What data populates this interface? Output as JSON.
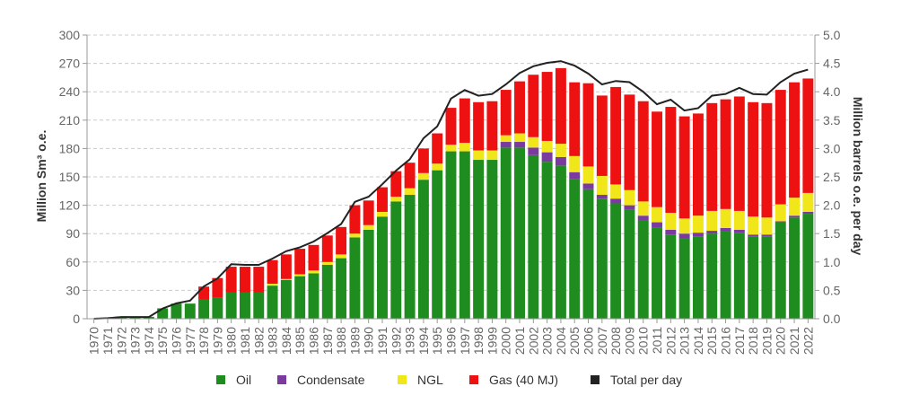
{
  "chart_data": {
    "type": "bar",
    "stacked": true,
    "title": "",
    "xlabel": "",
    "ylabel": "Million Sm³ o.e.",
    "ylabel_right": "Million barrels o.e. per day",
    "ylim": [
      0,
      300
    ],
    "ylim_right": [
      0,
      5
    ],
    "yticks": [
      "0",
      "30",
      "60",
      "90",
      "120",
      "150",
      "180",
      "210",
      "240",
      "270",
      "300"
    ],
    "yticks_right": [
      "0.0",
      "0.5",
      "1.0",
      "1.5",
      "2.0",
      "2.5",
      "3.0",
      "3.5",
      "4.0",
      "4.5",
      "5.0"
    ],
    "grid": true,
    "legend_position": "bottom",
    "categories": [
      "1970",
      "1971",
      "1972",
      "1973",
      "1974",
      "1975",
      "1976",
      "1977",
      "1978",
      "1979",
      "1980",
      "1981",
      "1982",
      "1983",
      "1984",
      "1985",
      "1986",
      "1987",
      "1988",
      "1989",
      "1990",
      "1991",
      "1992",
      "1993",
      "1994",
      "1995",
      "1996",
      "1997",
      "1998",
      "1999",
      "2000",
      "2001",
      "2002",
      "2003",
      "2004",
      "2005",
      "2006",
      "2007",
      "2008",
      "2009",
      "2010",
      "2011",
      "2012",
      "2013",
      "2014",
      "2015",
      "2016",
      "2017",
      "2018",
      "2019",
      "2020",
      "2021",
      "2022"
    ],
    "series": [
      {
        "name": "Oil",
        "color": "#1e8c1e",
        "values": [
          0,
          0.3,
          1.9,
          1.9,
          2.0,
          11,
          16,
          16,
          20,
          22,
          28,
          28,
          28,
          35,
          41,
          45,
          48,
          57,
          64,
          86,
          94,
          108,
          124,
          131,
          147,
          157,
          177,
          177,
          168,
          168,
          181,
          181,
          173,
          166,
          162,
          148,
          137,
          127,
          122,
          115,
          104,
          96,
          89,
          85,
          87,
          90,
          93,
          91,
          87,
          87,
          102,
          107,
          111
        ]
      },
      {
        "name": "Condensate",
        "color": "#7b3aa0",
        "values": [
          0,
          0,
          0,
          0,
          0,
          0,
          0,
          0,
          0,
          0,
          0,
          0,
          0,
          0,
          0,
          0,
          0,
          0,
          0,
          0,
          0,
          0,
          0,
          0,
          0,
          0,
          0,
          0,
          0,
          0,
          6,
          6,
          8,
          10,
          9,
          7,
          6,
          4,
          5,
          5,
          5,
          6,
          5,
          5,
          4,
          3,
          3,
          3,
          2,
          2,
          1,
          2,
          2
        ]
      },
      {
        "name": "NGL",
        "color": "#f0e61a",
        "values": [
          0,
          0,
          0,
          0,
          0,
          0,
          0,
          0,
          0,
          0,
          0,
          0,
          0,
          2,
          1,
          2,
          3,
          3,
          4,
          4,
          5,
          5,
          5,
          7,
          7,
          7,
          7,
          9,
          10,
          10,
          7,
          9,
          11,
          12,
          14,
          17,
          18,
          20,
          15,
          16,
          15,
          16,
          18,
          16,
          18,
          21,
          20,
          20,
          19,
          18,
          18,
          19,
          20
        ]
      },
      {
        "name": "Gas (40 MJ)",
        "color": "#ee1111",
        "values": [
          0,
          0,
          0,
          0,
          0,
          0,
          0,
          0,
          14,
          21,
          27,
          27,
          27,
          25,
          26,
          27,
          27,
          28,
          29,
          30,
          26,
          26,
          27,
          27,
          26,
          32,
          39,
          47,
          51,
          52,
          48,
          55,
          66,
          73,
          80,
          78,
          88,
          85,
          103,
          101,
          106,
          101,
          112,
          108,
          108,
          114,
          116,
          121,
          121,
          121,
          121,
          122,
          121
        ]
      },
      {
        "name": "Total per day",
        "color": "#222222",
        "kind": "line",
        "values": [
          0.0,
          0.01,
          0.03,
          0.03,
          0.03,
          0.18,
          0.27,
          0.32,
          0.57,
          0.71,
          0.96,
          0.95,
          0.95,
          1.06,
          1.19,
          1.26,
          1.36,
          1.51,
          1.67,
          2.06,
          2.15,
          2.37,
          2.61,
          2.81,
          3.18,
          3.39,
          3.88,
          4.03,
          3.93,
          3.96,
          4.13,
          4.33,
          4.45,
          4.51,
          4.54,
          4.46,
          4.32,
          4.13,
          4.19,
          4.17,
          4.0,
          3.78,
          3.86,
          3.67,
          3.71,
          3.93,
          3.96,
          4.07,
          3.96,
          3.95,
          4.17,
          4.32,
          4.39
        ]
      }
    ]
  }
}
